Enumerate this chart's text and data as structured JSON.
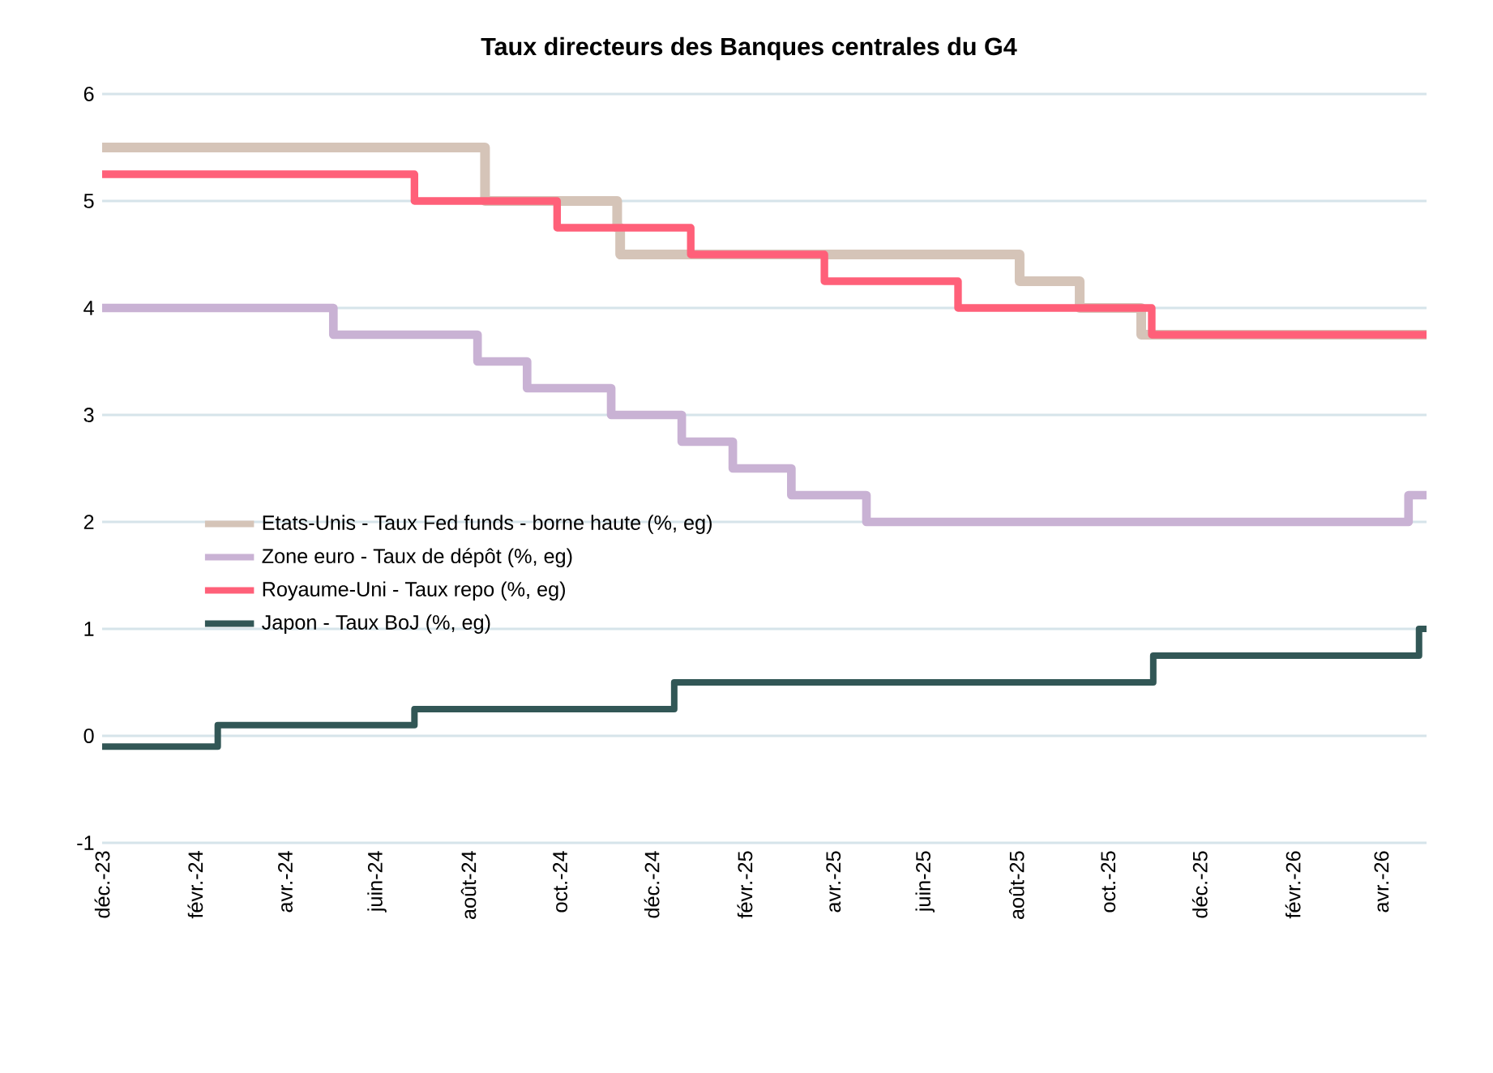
{
  "chart_data": {
    "type": "step",
    "title": "Taux directeurs des Banques centrales du G4",
    "xlim": [
      "2023-12-01",
      "2026-05-01"
    ],
    "ylim": [
      -1,
      6
    ],
    "yticks": [
      -1,
      0,
      1,
      2,
      3,
      4,
      5,
      6
    ],
    "xticks": [
      {
        "value": "2023-12-01",
        "label": "déc.-23"
      },
      {
        "value": "2024-02-01",
        "label": "févr.-24"
      },
      {
        "value": "2024-04-01",
        "label": "avr.-24"
      },
      {
        "value": "2024-06-01",
        "label": "juin-24"
      },
      {
        "value": "2024-08-01",
        "label": "août-24"
      },
      {
        "value": "2024-10-01",
        "label": "oct.-24"
      },
      {
        "value": "2024-12-01",
        "label": "déc.-24"
      },
      {
        "value": "2025-02-01",
        "label": "févr.-25"
      },
      {
        "value": "2025-04-01",
        "label": "avr.-25"
      },
      {
        "value": "2025-06-01",
        "label": "juin-25"
      },
      {
        "value": "2025-08-01",
        "label": "août-25"
      },
      {
        "value": "2025-10-01",
        "label": "oct.-25"
      },
      {
        "value": "2025-12-01",
        "label": "déc.-25"
      },
      {
        "value": "2026-02-01",
        "label": "févr.-26"
      },
      {
        "value": "2026-04-01",
        "label": "avr.-26"
      }
    ],
    "grid": "y",
    "legend": "left",
    "marker": "none",
    "line_style": "solid",
    "series": [
      {
        "name": "Etats-Unis - Taux Fed funds - borne haute  (%, eg)",
        "color": "#d5c4b8",
        "x": [
          "2023-12-01",
          "2024-08-12",
          "2024-11-08",
          "2024-11-10",
          "2025-08-03",
          "2025-09-12",
          "2025-10-23",
          "2026-05-01"
        ],
        "values": [
          5.5,
          5.0,
          4.75,
          4.5,
          4.25,
          4.0,
          3.75,
          3.75
        ]
      },
      {
        "name": "Zone euro - Taux de dépôt  (%, eg)",
        "color": "#c9b2d4",
        "x": [
          "2023-12-01",
          "2024-05-03",
          "2024-08-07",
          "2024-09-09",
          "2024-11-04",
          "2024-12-21",
          "2025-01-24",
          "2025-03-04",
          "2025-04-23",
          "2026-04-19",
          "2026-05-01"
        ],
        "values": [
          4.0,
          3.75,
          3.5,
          3.25,
          3.0,
          2.75,
          2.5,
          2.25,
          2.0,
          2.25,
          2.25
        ]
      },
      {
        "name": "Royaume-Uni - Taux repo  (%, eg)",
        "color": "#ff6079",
        "x": [
          "2023-12-01",
          "2024-06-26",
          "2024-09-29",
          "2024-12-27",
          "2025-03-26",
          "2025-06-23",
          "2025-10-30",
          "2026-05-01"
        ],
        "values": [
          5.25,
          5.0,
          4.75,
          4.5,
          4.25,
          4.0,
          3.75,
          3.75
        ]
      },
      {
        "name": "Japon - Taux BoJ  (%, eg)",
        "color": "#325756",
        "x": [
          "2023-12-01",
          "2024-02-16",
          "2024-06-26",
          "2024-12-16",
          "2025-10-31",
          "2026-04-26",
          "2026-05-01"
        ],
        "values": [
          -0.1,
          0.1,
          0.25,
          0.5,
          0.75,
          1.0,
          1.0
        ]
      }
    ]
  }
}
